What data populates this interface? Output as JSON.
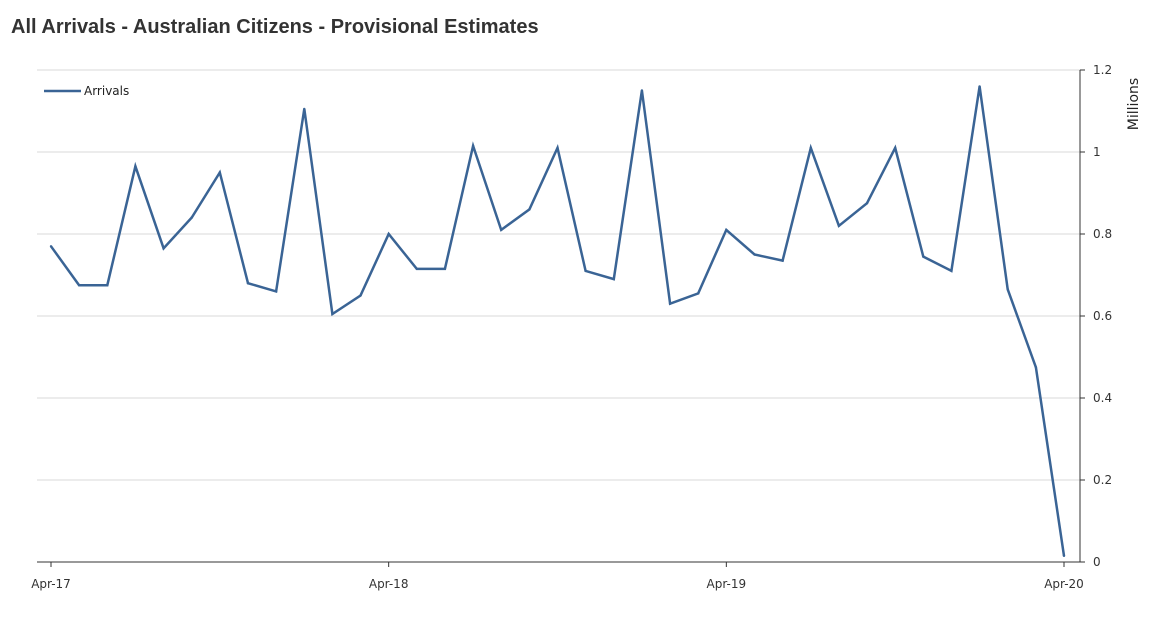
{
  "title": "All Arrivals - Australian Citizens - Provisional Estimates",
  "chart_data": {
    "type": "line",
    "title": "All Arrivals - Australian Citizens - Provisional Estimates",
    "xlabel": "",
    "ylabel": "Millions",
    "ylim": [
      0,
      1.2
    ],
    "yticks": [
      0,
      0.2,
      0.4,
      0.6,
      0.8,
      1,
      1.2
    ],
    "ytick_labels": [
      "0",
      "0.2",
      "0.4",
      "0.6",
      "0.8",
      "1",
      "1.2"
    ],
    "xtick_labels": [
      "Apr-17",
      "Apr-18",
      "Apr-19",
      "Apr-20"
    ],
    "xtick_index": [
      0,
      12,
      24,
      36
    ],
    "grid": true,
    "legend_position": "top-left",
    "color": "#3a6495",
    "series": [
      {
        "name": "Arrivals",
        "values": [
          0.77,
          0.675,
          0.675,
          0.965,
          0.765,
          0.84,
          0.95,
          0.68,
          0.66,
          1.105,
          0.605,
          0.65,
          0.8,
          0.715,
          0.715,
          1.015,
          0.81,
          0.86,
          1.01,
          0.71,
          0.69,
          1.15,
          0.63,
          0.655,
          0.81,
          0.75,
          0.735,
          1.01,
          0.82,
          0.875,
          1.01,
          0.745,
          0.71,
          1.16,
          0.665,
          0.475,
          0.015
        ]
      }
    ]
  }
}
